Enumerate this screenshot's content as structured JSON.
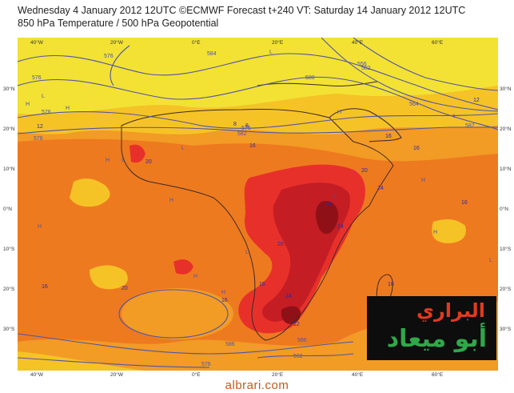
{
  "header": {
    "line1": "Wednesday 4 January 2012 12UTC ©ECMWF Forecast t+240 VT: Saturday 14 January 2012 12UTC",
    "line2": "850 hPa Temperature / 500 hPa Geopotential"
  },
  "axes": {
    "lon_labels": [
      "40°W",
      "20°W",
      "0°E",
      "20°E",
      "40°E",
      "60°E"
    ],
    "lat_labels": [
      "30°N",
      "20°N",
      "10°N",
      "0°N",
      "10°S",
      "20°S",
      "30°S"
    ]
  },
  "contour_labels": [
    "576",
    "584",
    "576",
    "576",
    "588",
    "582",
    "582",
    "576",
    "564",
    "556",
    "576",
    "582",
    "586",
    "592",
    "586",
    "576"
  ],
  "isotherm_labels": [
    "12",
    "12",
    "8",
    "16",
    "20",
    "20",
    "24",
    "24",
    "24",
    "20",
    "16",
    "16",
    "16",
    "20",
    "24",
    "16",
    "16",
    "12",
    "16",
    "12",
    "16",
    "8",
    "16"
  ],
  "pressure_symbols": [
    "H",
    "L",
    "H",
    "H",
    "L",
    "L",
    "H",
    "L",
    "H",
    "L",
    "H",
    "L",
    "L",
    "H",
    "H",
    "H",
    "L",
    "H"
  ],
  "colors": {
    "t_8_12": "#f3e233",
    "t_12_16": "#f6c327",
    "t_16_20": "#f29b25",
    "t_20_24": "#ee7a1f",
    "t_24_28": "#e8302a",
    "t_28_32": "#c51d24",
    "t_32plus": "#8f1117",
    "contour": "#4f55a8",
    "coast": "#3b2a2a"
  },
  "logo": {
    "line1": "البراري",
    "line2": "أبو ميعاد"
  },
  "footer": {
    "url": "albrari.com"
  }
}
